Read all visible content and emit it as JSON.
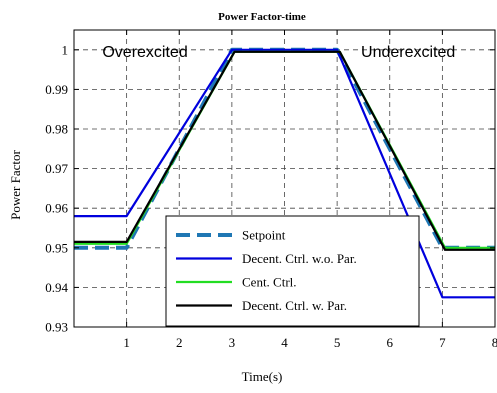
{
  "chart_data": {
    "type": "line",
    "title": "Power Factor-time",
    "xlabel": "Time(s)",
    "ylabel": "Power Factor",
    "xlim": [
      0,
      8
    ],
    "ylim": [
      0.93,
      1.005
    ],
    "xticks": [
      1,
      2,
      3,
      4,
      5,
      6,
      7,
      8
    ],
    "yticks": [
      0.93,
      0.94,
      0.95,
      0.96,
      0.97,
      0.98,
      0.99,
      1
    ],
    "ytick_labels": [
      "0.93",
      "0.94",
      "0.95",
      "0.96",
      "0.97",
      "0.98",
      "0.99",
      "1"
    ],
    "grid": true,
    "grid_style": "dashed",
    "legend_position": "bottom-center",
    "annotations": [
      {
        "text": "Overexcited",
        "x": 1.35,
        "y": 0.9995
      },
      {
        "text": "Underexcited",
        "x": 6.35,
        "y": 0.9995
      }
    ],
    "series": [
      {
        "name": "Setpoint",
        "color": "#1f77b4",
        "style": "dashed",
        "x": [
          0,
          1,
          3,
          5,
          7,
          8
        ],
        "y": [
          0.95,
          0.95,
          1.0,
          1.0,
          0.95,
          0.95
        ]
      },
      {
        "name": "Decent. Ctrl. w.o. Par.",
        "color": "#0000dd",
        "style": "solid",
        "x": [
          0,
          1,
          3,
          5,
          7,
          8
        ],
        "y": [
          0.958,
          0.958,
          1.0,
          1.0,
          0.9375,
          0.9375
        ]
      },
      {
        "name": "Cent. Ctrl.",
        "color": "#22dd22",
        "style": "solid",
        "x": [
          0,
          1,
          3.05,
          5.05,
          7.05,
          8
        ],
        "y": [
          0.951,
          0.951,
          0.9995,
          0.9995,
          0.95,
          0.95
        ]
      },
      {
        "name": "Decent. Ctrl. w. Par.",
        "color": "#000000",
        "style": "solid",
        "x": [
          0,
          1,
          3.05,
          5.05,
          7.05,
          8
        ],
        "y": [
          0.9515,
          0.9515,
          0.9995,
          0.9995,
          0.9495,
          0.9495
        ]
      }
    ]
  }
}
